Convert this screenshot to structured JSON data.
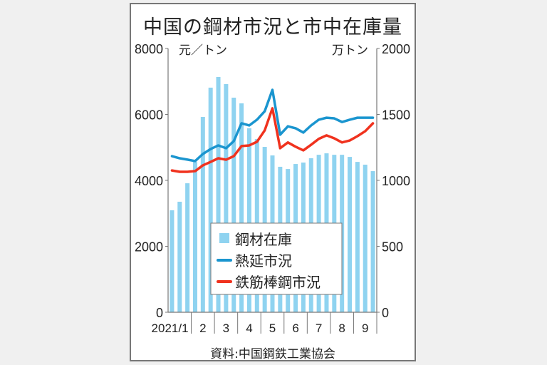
{
  "chart_data": {
    "type": "bar+line",
    "title": "中国の鋼材市況と市中在庫量",
    "source": "資料:中国鋼鉄工業協会",
    "left_axis": {
      "unit": "元／トン",
      "ticks": [
        0,
        2000,
        4000,
        6000,
        8000
      ],
      "ylim": [
        0,
        8000
      ]
    },
    "right_axis": {
      "unit": "万トン",
      "ticks": [
        0,
        500,
        1000,
        1500,
        2000
      ],
      "ylim": [
        0,
        2000
      ]
    },
    "x_tick_labels": [
      "2021/1",
      "2",
      "3",
      "4",
      "5",
      "6",
      "7",
      "8",
      "9"
    ],
    "grid": false,
    "legend": {
      "position": "inside-lower-center",
      "entries": [
        "鋼材在庫",
        "熱延市況",
        "鉄筋棒鋼市況"
      ]
    },
    "series": [
      {
        "name": "鋼材在庫",
        "type": "bar",
        "axis": "right",
        "color": "#8fd3f0",
        "values": [
          773,
          838,
          978,
          1140,
          1481,
          1703,
          1784,
          1730,
          1627,
          1584,
          1395,
          1313,
          1254,
          1189,
          1103,
          1086,
          1124,
          1135,
          1168,
          1194,
          1205,
          1194,
          1194,
          1178,
          1140,
          1119,
          1070
        ]
      },
      {
        "name": "熱延市況",
        "type": "line",
        "axis": "left",
        "color": "#1a95cf",
        "values": [
          4735,
          4670,
          4630,
          4585,
          4800,
          4950,
          5060,
          4975,
          5190,
          5730,
          5665,
          5840,
          6095,
          6745,
          5385,
          5640,
          5580,
          5450,
          5665,
          5840,
          5900,
          5880,
          5770,
          5840,
          5900,
          5900,
          5900
        ]
      },
      {
        "name": "鉄筋棒鋼市況",
        "type": "line",
        "axis": "left",
        "color": "#f0321e",
        "values": [
          4300,
          4260,
          4260,
          4280,
          4455,
          4560,
          4670,
          4625,
          4735,
          5040,
          5060,
          5170,
          5515,
          6185,
          4975,
          5150,
          5020,
          4910,
          5080,
          5260,
          5365,
          5275,
          5150,
          5210,
          5340,
          5490,
          5730
        ]
      }
    ]
  },
  "labels": {
    "title": "中国の鋼材市況と市中在庫量",
    "left_unit": "元／トン",
    "right_unit": "万トン",
    "source": "資料:中国鋼鉄工業協会"
  }
}
